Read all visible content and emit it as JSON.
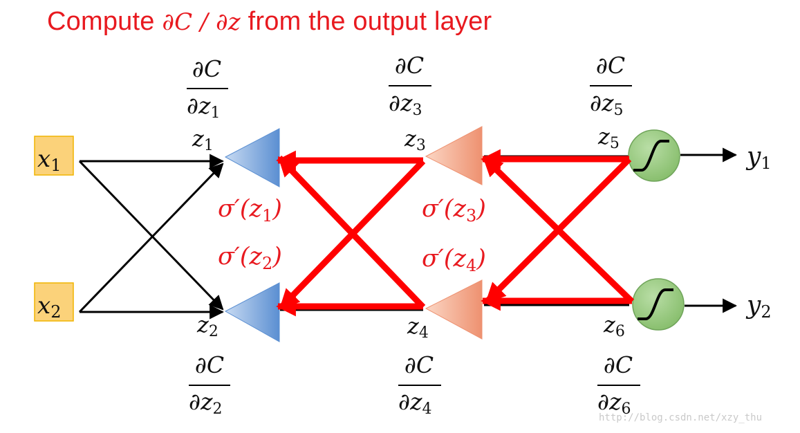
{
  "title": {
    "prefix": "Compute ",
    "math": "∂C / ∂z",
    "suffix": " from the output layer",
    "color": "#e8191f"
  },
  "inputs": [
    {
      "var": "x",
      "sub": "1"
    },
    {
      "var": "x",
      "sub": "2"
    }
  ],
  "outputs": [
    {
      "var": "y",
      "sub": "1"
    },
    {
      "var": "y",
      "sub": "2"
    }
  ],
  "neurons": [
    {
      "z_label": "z",
      "z_sub": "1",
      "grad_num": "∂C",
      "grad_den": "∂z",
      "grad_sub": "1",
      "layer": 1
    },
    {
      "z_label": "z",
      "z_sub": "2",
      "grad_num": "∂C",
      "grad_den": "∂z",
      "grad_sub": "2",
      "layer": 1
    },
    {
      "z_label": "z",
      "z_sub": "3",
      "grad_num": "∂C",
      "grad_den": "∂z",
      "grad_sub": "3",
      "layer": 2
    },
    {
      "z_label": "z",
      "z_sub": "4",
      "grad_num": "∂C",
      "grad_den": "∂z",
      "grad_sub": "4",
      "layer": 2
    },
    {
      "z_label": "z",
      "z_sub": "5",
      "grad_num": "∂C",
      "grad_den": "∂z",
      "grad_sub": "5",
      "layer": 3
    },
    {
      "z_label": "z",
      "z_sub": "6",
      "grad_num": "∂C",
      "grad_den": "∂z",
      "grad_sub": "6",
      "layer": 3
    }
  ],
  "sigma_labels": [
    {
      "pre": "σ′(z",
      "sub": "1",
      "post": ")"
    },
    {
      "pre": "σ′(z",
      "sub": "2",
      "post": ")"
    },
    {
      "pre": "σ′(z",
      "sub": "3",
      "post": ")"
    },
    {
      "pre": "σ′(z",
      "sub": "4",
      "post": ")"
    }
  ],
  "colors": {
    "backprop": "#ff0000",
    "forward": "#000000",
    "input_fill": "#fbd27a",
    "input_border": "#f0b400",
    "layer1_fill": "#6f9fd8",
    "layer2_fill": "#f3a183",
    "output_fill": "#97c97d",
    "output_border": "#6fa45a"
  },
  "watermark": "http://blog.csdn.net/xzy_thu"
}
